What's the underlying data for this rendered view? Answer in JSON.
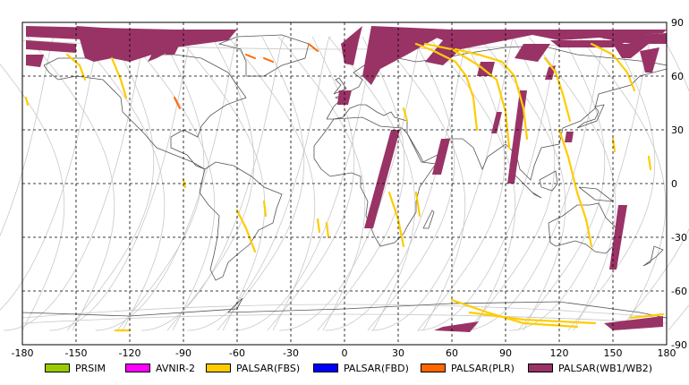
{
  "chart_data": {
    "type": "map",
    "projection": "equirectangular",
    "xlim": [
      -180,
      180
    ],
    "ylim": [
      -90,
      90
    ],
    "x_ticks": [
      -180,
      -150,
      -120,
      -90,
      -60,
      -30,
      0,
      30,
      60,
      90,
      120,
      150,
      180
    ],
    "y_ticks": [
      90,
      60,
      30,
      0,
      -30,
      -60,
      -90
    ],
    "grid": "dashed",
    "legend": [
      {
        "label": "PRSIM",
        "color": "#99cc00"
      },
      {
        "label": "AVNIR-2",
        "color": "#ff00ff"
      },
      {
        "label": "PALSAR(FBS)",
        "color": "#ffcc00"
      },
      {
        "label": "PALSAR(FBD)",
        "color": "#0000ff"
      },
      {
        "label": "PALSAR(PLR)",
        "color": "#ff6600"
      },
      {
        "label": "PALSAR(WB1/WB2)",
        "color": "#993366"
      }
    ],
    "legend_position": "bottom"
  },
  "colors": {
    "orbit": "#c8c8c8",
    "coast": "#555555",
    "grid": "#000000"
  }
}
